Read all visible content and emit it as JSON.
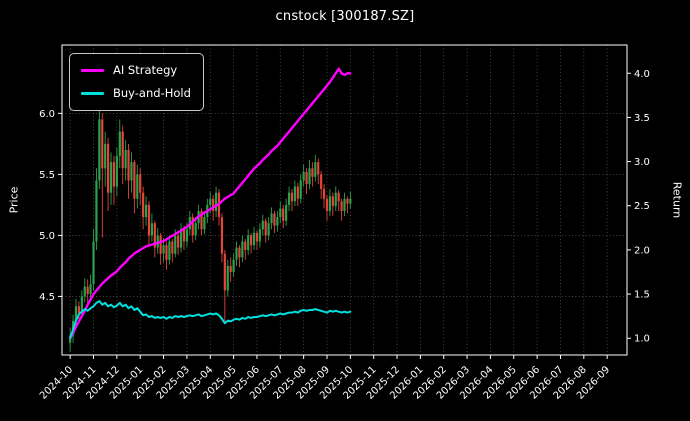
{
  "colors": {
    "background": "#000000",
    "frame": "#ffffff",
    "grid": "#999999",
    "text": "#ffffff",
    "up": "#2ba24c",
    "down": "#e6453a",
    "strategy": "#ff00ff",
    "buyhold": "#00e0df"
  },
  "chart_data": {
    "type": "candlestick+line",
    "title": "cnstock [300187.SZ]",
    "price_axis": {
      "label": "Price",
      "ticks": [
        4.5,
        5.0,
        5.5,
        6.0
      ],
      "lim": [
        4.02,
        6.56
      ]
    },
    "return_axis": {
      "label": "Return",
      "ticks": [
        1.0,
        1.5,
        2.0,
        2.5,
        3.0,
        3.5,
        4.0
      ],
      "lim": [
        0.81,
        4.32
      ]
    },
    "x_axis": {
      "unit": "months since 2024-10",
      "lim": [
        -0.35,
        23.85
      ],
      "tick_labels": [
        "2024-10",
        "2024-11",
        "2024-12",
        "2025-01",
        "2025-02",
        "2025-03",
        "2025-04",
        "2025-05",
        "2025-06",
        "2025-07",
        "2025-08",
        "2025-09",
        "2025-10",
        "2025-11",
        "2025-12",
        "2026-01",
        "2026-02",
        "2026-03",
        "2026-04",
        "2026-05",
        "2026-06",
        "2026-07",
        "2026-08",
        "2026-09"
      ]
    },
    "grid": true,
    "legend": {
      "position": "upper-left",
      "items": [
        {
          "label": "AI Strategy",
          "color": "#ff00ff"
        },
        {
          "label": "Buy-and-Hold",
          "color": "#00e0df"
        }
      ]
    },
    "candles": {
      "t_start": 0,
      "t_step": 0.125,
      "columns": [
        "open",
        "high",
        "low",
        "close"
      ],
      "ohlc": [
        [
          4.12,
          4.24,
          4.05,
          4.18
        ],
        [
          4.18,
          4.35,
          4.12,
          4.3
        ],
        [
          4.3,
          4.48,
          4.26,
          4.42
        ],
        [
          4.42,
          4.46,
          4.28,
          4.36
        ],
        [
          4.36,
          4.55,
          4.32,
          4.5
        ],
        [
          4.5,
          4.65,
          4.45,
          4.58
        ],
        [
          4.58,
          4.64,
          4.44,
          4.52
        ],
        [
          4.52,
          4.68,
          4.48,
          4.6
        ],
        [
          4.6,
          5.05,
          4.55,
          4.95
        ],
        [
          4.95,
          5.55,
          4.88,
          5.45
        ],
        [
          5.45,
          6.08,
          5.38,
          5.95
        ],
        [
          5.95,
          6.0,
          4.98,
          5.55
        ],
        [
          5.55,
          5.85,
          5.4,
          5.75
        ],
        [
          5.75,
          5.8,
          5.2,
          5.35
        ],
        [
          5.35,
          5.68,
          5.25,
          5.6
        ],
        [
          5.6,
          5.65,
          5.25,
          5.4
        ],
        [
          5.4,
          5.72,
          5.32,
          5.65
        ],
        [
          5.65,
          5.95,
          5.55,
          5.85
        ],
        [
          5.85,
          5.9,
          5.42,
          5.55
        ],
        [
          5.55,
          5.78,
          5.45,
          5.7
        ],
        [
          5.7,
          5.75,
          5.3,
          5.45
        ],
        [
          5.45,
          5.68,
          5.35,
          5.6
        ],
        [
          5.6,
          5.62,
          5.18,
          5.3
        ],
        [
          5.3,
          5.58,
          5.22,
          5.5
        ],
        [
          5.5,
          5.55,
          5.25,
          5.35
        ],
        [
          5.35,
          5.4,
          5.05,
          5.15
        ],
        [
          5.15,
          5.32,
          5.08,
          5.25
        ],
        [
          5.25,
          5.28,
          4.92,
          5.0
        ],
        [
          5.0,
          5.18,
          4.95,
          5.1
        ],
        [
          5.1,
          5.12,
          4.82,
          4.9
        ],
        [
          4.9,
          5.06,
          4.85,
          5.0
        ],
        [
          5.0,
          5.02,
          4.76,
          4.85
        ],
        [
          4.85,
          4.98,
          4.78,
          4.92
        ],
        [
          4.92,
          4.95,
          4.72,
          4.8
        ],
        [
          4.8,
          5.0,
          4.76,
          4.95
        ],
        [
          4.95,
          4.97,
          4.78,
          4.85
        ],
        [
          4.85,
          5.05,
          4.82,
          5.0
        ],
        [
          5.0,
          5.02,
          4.84,
          4.9
        ],
        [
          4.9,
          5.1,
          4.86,
          5.05
        ],
        [
          5.05,
          5.08,
          4.88,
          4.95
        ],
        [
          4.95,
          5.1,
          4.9,
          5.05
        ],
        [
          5.05,
          5.2,
          5.0,
          5.15
        ],
        [
          5.15,
          5.18,
          4.94,
          5.0
        ],
        [
          5.0,
          5.15,
          4.96,
          5.1
        ],
        [
          5.1,
          5.25,
          5.05,
          5.2
        ],
        [
          5.2,
          5.22,
          5.0,
          5.05
        ],
        [
          5.05,
          5.2,
          5.01,
          5.15
        ],
        [
          5.15,
          5.3,
          5.1,
          5.25
        ],
        [
          5.25,
          5.36,
          5.18,
          5.3
        ],
        [
          5.3,
          5.33,
          5.12,
          5.2
        ],
        [
          5.2,
          5.4,
          5.15,
          5.35
        ],
        [
          5.35,
          5.38,
          5.08,
          5.15
        ],
        [
          5.15,
          5.18,
          4.78,
          4.85
        ],
        [
          4.85,
          4.88,
          4.28,
          4.55
        ],
        [
          4.55,
          4.8,
          4.5,
          4.75
        ],
        [
          4.75,
          4.82,
          4.62,
          4.7
        ],
        [
          4.7,
          4.85,
          4.66,
          4.8
        ],
        [
          4.8,
          4.95,
          4.75,
          4.9
        ],
        [
          4.9,
          4.92,
          4.74,
          4.82
        ],
        [
          4.82,
          5.0,
          4.78,
          4.95
        ],
        [
          4.95,
          4.97,
          4.8,
          4.88
        ],
        [
          4.88,
          5.05,
          4.84,
          5.0
        ],
        [
          5.0,
          5.02,
          4.85,
          4.92
        ],
        [
          4.92,
          5.07,
          4.88,
          5.02
        ],
        [
          5.02,
          5.04,
          4.88,
          4.95
        ],
        [
          4.95,
          5.1,
          4.9,
          5.05
        ],
        [
          5.05,
          5.17,
          5.0,
          5.12
        ],
        [
          5.12,
          5.14,
          4.94,
          5.0
        ],
        [
          5.0,
          5.15,
          4.96,
          5.1
        ],
        [
          5.1,
          5.23,
          5.05,
          5.18
        ],
        [
          5.18,
          5.2,
          5.02,
          5.08
        ],
        [
          5.08,
          5.2,
          5.03,
          5.15
        ],
        [
          5.15,
          5.28,
          5.1,
          5.22
        ],
        [
          5.22,
          5.25,
          5.06,
          5.12
        ],
        [
          5.12,
          5.3,
          5.08,
          5.25
        ],
        [
          5.25,
          5.4,
          5.2,
          5.35
        ],
        [
          5.35,
          5.38,
          5.2,
          5.28
        ],
        [
          5.28,
          5.45,
          5.24,
          5.4
        ],
        [
          5.4,
          5.43,
          5.24,
          5.3
        ],
        [
          5.3,
          5.5,
          5.26,
          5.45
        ],
        [
          5.45,
          5.58,
          5.4,
          5.52
        ],
        [
          5.52,
          5.55,
          5.34,
          5.42
        ],
        [
          5.42,
          5.62,
          5.38,
          5.55
        ],
        [
          5.55,
          5.6,
          5.4,
          5.48
        ],
        [
          5.48,
          5.66,
          5.44,
          5.6
        ],
        [
          5.6,
          5.63,
          5.42,
          5.5
        ],
        [
          5.5,
          5.53,
          5.3,
          5.38
        ],
        [
          5.38,
          5.42,
          5.22,
          5.3
        ],
        [
          5.3,
          5.33,
          5.12,
          5.2
        ],
        [
          5.2,
          5.38,
          5.16,
          5.32
        ],
        [
          5.32,
          5.35,
          5.16,
          5.24
        ],
        [
          5.24,
          5.4,
          5.2,
          5.35
        ],
        [
          5.35,
          5.37,
          5.2,
          5.28
        ],
        [
          5.28,
          5.3,
          5.12,
          5.2
        ],
        [
          5.2,
          5.35,
          5.16,
          5.3
        ],
        [
          5.3,
          5.32,
          5.18,
          5.26
        ],
        [
          5.26,
          5.36,
          5.22,
          5.3
        ]
      ]
    },
    "series": [
      {
        "name": "AI Strategy",
        "axis": "return",
        "color": "#ff00ff",
        "width": 2.4,
        "t_start": 0,
        "t_step": 0.125,
        "values": [
          1.0,
          1.06,
          1.13,
          1.19,
          1.25,
          1.31,
          1.38,
          1.44,
          1.5,
          1.54,
          1.58,
          1.62,
          1.65,
          1.68,
          1.71,
          1.73,
          1.76,
          1.8,
          1.83,
          1.86,
          1.9,
          1.93,
          1.96,
          1.98,
          2.0,
          2.02,
          2.04,
          2.05,
          2.06,
          2.07,
          2.08,
          2.09,
          2.1,
          2.12,
          2.14,
          2.16,
          2.18,
          2.2,
          2.22,
          2.24,
          2.26,
          2.29,
          2.32,
          2.35,
          2.38,
          2.4,
          2.42,
          2.44,
          2.46,
          2.48,
          2.5,
          2.52,
          2.55,
          2.58,
          2.6,
          2.62,
          2.64,
          2.68,
          2.72,
          2.76,
          2.8,
          2.84,
          2.88,
          2.92,
          2.95,
          2.98,
          3.02,
          3.05,
          3.08,
          3.12,
          3.15,
          3.18,
          3.22,
          3.26,
          3.3,
          3.34,
          3.38,
          3.42,
          3.46,
          3.5,
          3.54,
          3.58,
          3.62,
          3.66,
          3.7,
          3.74,
          3.78,
          3.82,
          3.86,
          3.9,
          3.95,
          4.0,
          4.05,
          4.0,
          3.98,
          4.0,
          4.0
        ]
      },
      {
        "name": "Buy-and-Hold",
        "axis": "return",
        "color": "#00e0df",
        "width": 2.0,
        "t_start": 0,
        "t_step": 0.125,
        "values": [
          1.0,
          1.1,
          1.2,
          1.27,
          1.3,
          1.33,
          1.31,
          1.34,
          1.36,
          1.4,
          1.42,
          1.38,
          1.4,
          1.36,
          1.38,
          1.35,
          1.37,
          1.4,
          1.36,
          1.38,
          1.34,
          1.36,
          1.32,
          1.34,
          1.3,
          1.26,
          1.27,
          1.24,
          1.25,
          1.23,
          1.24,
          1.23,
          1.24,
          1.22,
          1.24,
          1.23,
          1.25,
          1.24,
          1.25,
          1.24,
          1.25,
          1.26,
          1.25,
          1.26,
          1.27,
          1.25,
          1.26,
          1.27,
          1.28,
          1.27,
          1.28,
          1.26,
          1.22,
          1.17,
          1.2,
          1.19,
          1.21,
          1.22,
          1.21,
          1.23,
          1.22,
          1.24,
          1.23,
          1.24,
          1.24,
          1.25,
          1.26,
          1.25,
          1.26,
          1.27,
          1.26,
          1.27,
          1.28,
          1.27,
          1.28,
          1.29,
          1.29,
          1.3,
          1.29,
          1.31,
          1.32,
          1.31,
          1.32,
          1.32,
          1.33,
          1.32,
          1.31,
          1.3,
          1.29,
          1.31,
          1.3,
          1.31,
          1.3,
          1.29,
          1.3,
          1.29,
          1.3
        ]
      }
    ]
  }
}
